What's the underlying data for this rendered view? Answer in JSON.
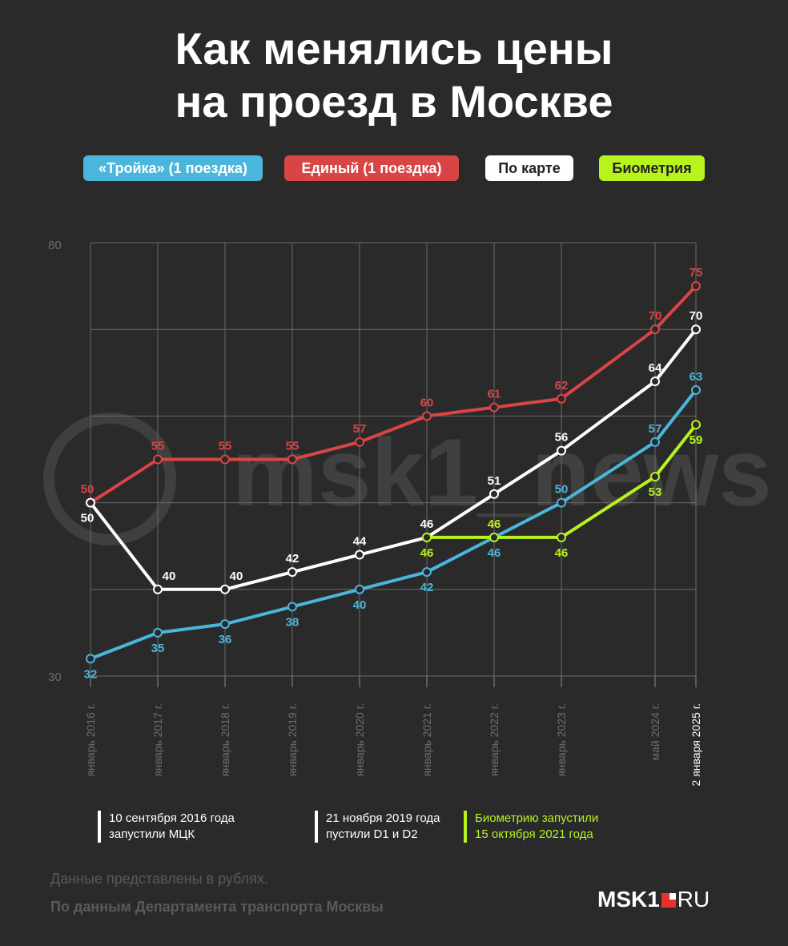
{
  "title_line1": "Как менялись цены",
  "title_line2": "на проезд в Москве",
  "legend": {
    "troika": "«Тройка» (1 поездка)",
    "edinyi": "Единый (1 поездка)",
    "card": "По карте",
    "bio": "Биометрия"
  },
  "watermark": "msk1_news",
  "chart_data": {
    "type": "line",
    "x": [
      "январь 2016 г.",
      "январь 2017 г.",
      "январь 2018 г.",
      "январь 2019 г.",
      "январь 2020 г.",
      "январь 2021 г.",
      "январь 2022 г.",
      "январь 2023 г.",
      "май 2024 г.",
      "2 января 2025 г."
    ],
    "ylim": [
      30,
      80
    ],
    "ytick_labels": [
      "30",
      "80"
    ],
    "grid": true,
    "series": [
      {
        "name": "«Тройка» (1 поездка)",
        "color": "#4ab6db",
        "values": [
          32,
          35,
          36,
          38,
          40,
          42,
          46,
          50,
          57,
          63
        ]
      },
      {
        "name": "Единый (1 поездка)",
        "color": "#d94545",
        "values": [
          50,
          55,
          55,
          55,
          57,
          60,
          61,
          62,
          70,
          75
        ]
      },
      {
        "name": "По карте",
        "color": "#ffffff",
        "values": [
          50,
          40,
          40,
          42,
          44,
          46,
          51,
          56,
          64,
          70
        ]
      },
      {
        "name": "Биометрия",
        "color": "#b8f31d",
        "values": [
          null,
          null,
          null,
          null,
          null,
          46,
          46,
          46,
          53,
          59
        ]
      }
    ]
  },
  "notes": [
    "10 сентября 2016 года\nзапустили МЦК",
    "21 ноября 2019 года\nпустили D1 и D2",
    "Биометрию запустили\n15 октября 2021 года"
  ],
  "footer": {
    "line1": "Данные представлены в рублях.",
    "line2": "По данным Департамента транспорта Москвы"
  },
  "logo": {
    "msk": "MSK1",
    "ru": "RU"
  }
}
